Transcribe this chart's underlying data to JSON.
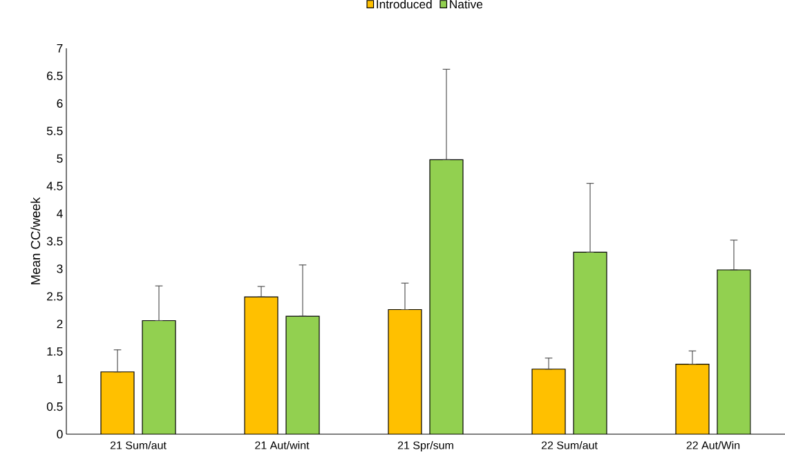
{
  "chart_data": {
    "type": "bar",
    "ylabel": "Mean CC/week",
    "categories": [
      "21 Sum/aut",
      "21 Aut/wint",
      "21 Spr/sum",
      "22 Sum/aut",
      "22 Aut/Win"
    ],
    "series": [
      {
        "name": "Introduced",
        "color": "#ffc000",
        "values": [
          1.13,
          2.49,
          2.26,
          1.18,
          1.27
        ],
        "errors": [
          [
            1.13,
            1.53
          ],
          [
            2.49,
            2.68
          ],
          [
            2.26,
            2.74
          ],
          [
            1.18,
            1.38
          ],
          [
            1.27,
            1.51
          ]
        ]
      },
      {
        "name": "Native",
        "color": "#92d050",
        "values": [
          2.06,
          2.14,
          4.98,
          3.3,
          2.98
        ],
        "errors": [
          [
            2.06,
            2.69
          ],
          [
            2.14,
            3.07
          ],
          [
            4.98,
            6.62
          ],
          [
            3.3,
            4.55
          ],
          [
            2.98,
            3.52
          ]
        ]
      }
    ],
    "ylim": [
      0,
      7
    ],
    "yticks": [
      0,
      0.5,
      1,
      1.5,
      2,
      2.5,
      3,
      3.5,
      4,
      4.5,
      5,
      5.5,
      6,
      6.5,
      7
    ],
    "grid": false,
    "legend": "top"
  }
}
